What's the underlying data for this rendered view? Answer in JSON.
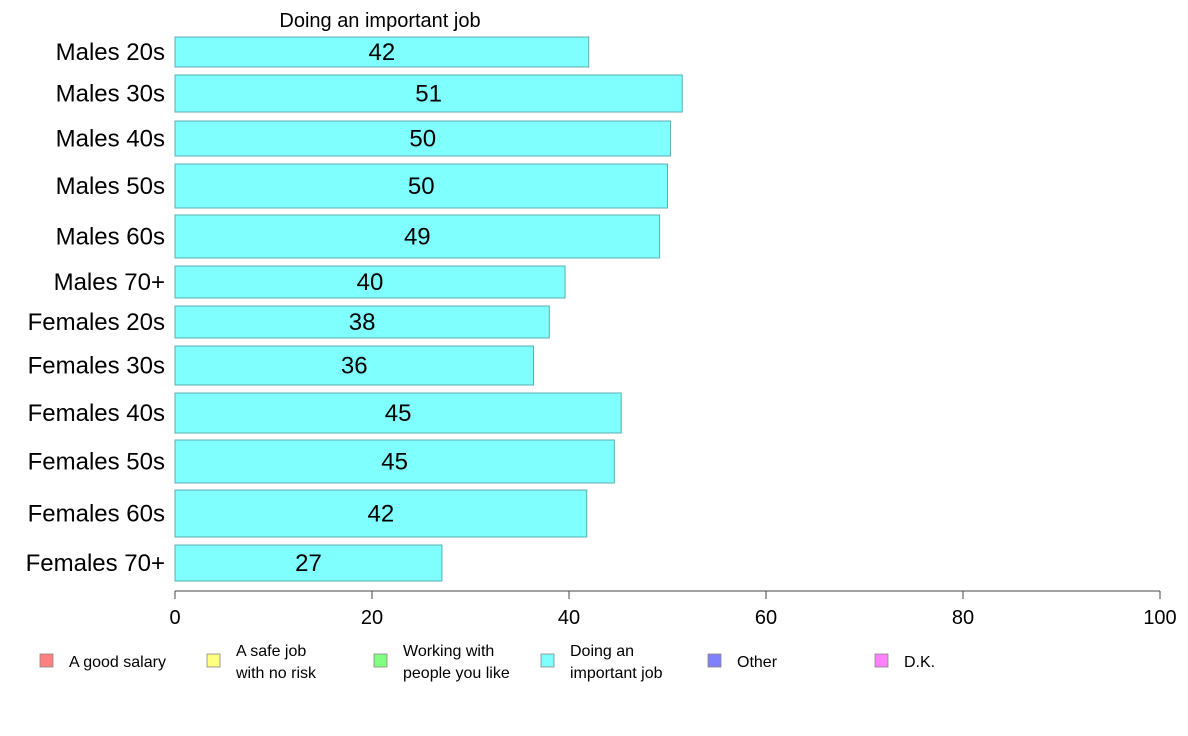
{
  "chart_data": {
    "type": "bar",
    "orientation": "horizontal",
    "title": "Doing an important job",
    "categories": [
      "Males 20s",
      "Males 30s",
      "Males 40s",
      "Males 50s",
      "Males 60s",
      "Males 70+",
      "Females 20s",
      "Females 30s",
      "Females 40s",
      "Females 50s",
      "Females 60s",
      "Females 70+"
    ],
    "series": [
      {
        "name": "Doing an important job",
        "color": "#80FFFF",
        "values": [
          42,
          51.5,
          50.3,
          50,
          49.2,
          39.6,
          38,
          36.4,
          45.3,
          44.6,
          41.8,
          27.1
        ]
      }
    ],
    "value_labels": [
      "42",
      "51",
      "50",
      "50",
      "49",
      "40",
      "38",
      "36",
      "45",
      "45",
      "42",
      "27"
    ],
    "xlim": [
      0,
      100
    ],
    "xticks": [
      "0",
      "20",
      "40",
      "60",
      "80",
      "100"
    ],
    "legend": {
      "position": "bottom",
      "items": [
        {
          "lines": [
            "A good salary"
          ],
          "color": "#FF8080"
        },
        {
          "lines": [
            "A safe job",
            "with no risk"
          ],
          "color": "#FFFF80"
        },
        {
          "lines": [
            "Working with",
            "people you like"
          ],
          "color": "#80FF80"
        },
        {
          "lines": [
            "Doing an",
            "important job"
          ],
          "color": "#80FFFF"
        },
        {
          "lines": [
            "Other"
          ],
          "color": "#8080FF"
        },
        {
          "lines": [
            "D.K."
          ],
          "color": "#FF80FF"
        }
      ]
    }
  }
}
